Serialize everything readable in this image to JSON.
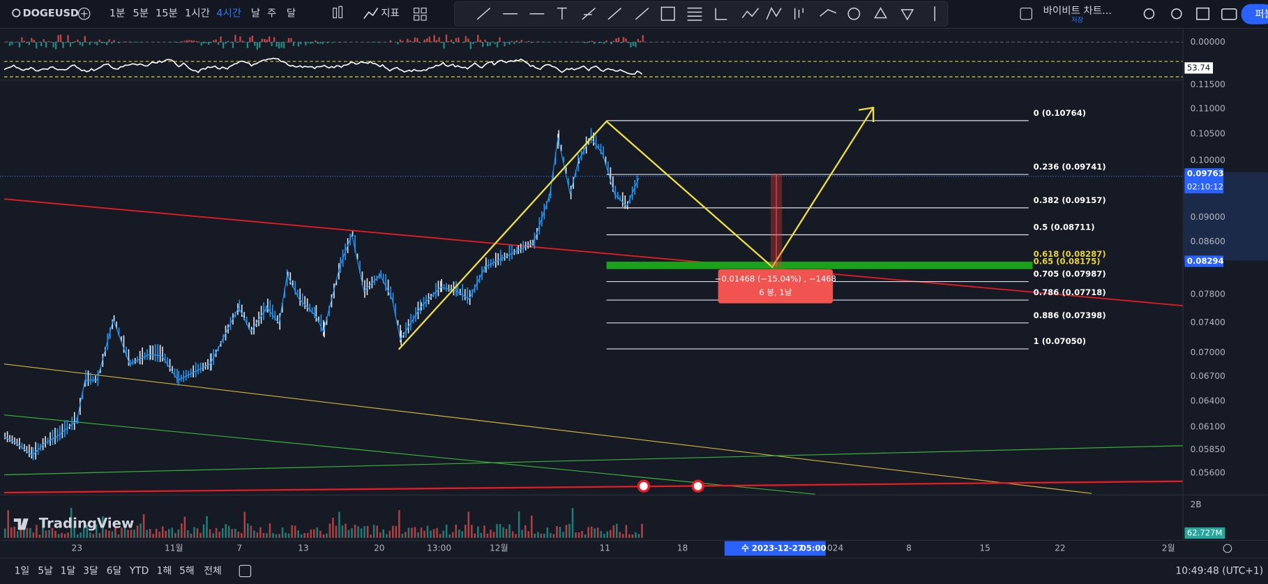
{
  "toolbar": {
    "symbol": "DOGEUSD",
    "intervals": [
      "1분",
      "5분",
      "15분",
      "1시간",
      "4시간",
      "날",
      "주",
      "달"
    ],
    "indicators": "지표",
    "layout_name": "바이비트 차트...",
    "save": "저장",
    "publish": "퍼블"
  },
  "price_axis": {
    "labels": [
      "0.11500",
      "0.11000",
      "0.10500",
      "0.10000",
      "0.09000",
      "0.08600",
      "0.07800",
      "0.07400",
      "0.07000",
      "0.06700",
      "0.06400",
      "0.06100",
      "0.05850",
      "0.05600"
    ],
    "oscillator_labels": [
      "0.00000",
      "53.74"
    ],
    "last_price": "0.09763",
    "countdown": "02:10:12",
    "marker_price": "0.08294",
    "volume_labels": [
      "2B",
      "62.727M"
    ]
  },
  "fib_levels": [
    "0 (0.10764)",
    "0.236 (0.09741)",
    "0.382 (0.09157)",
    "0.5 (0.08711)",
    "0.618 (0.08287)",
    "0.65 (0.08175)",
    "0.705 (0.07987)",
    "0.786 (0.07718)",
    "0.886 (0.07398)",
    "1 (0.07050)"
  ],
  "measure": {
    "change": "−0.01468 (−15.04%) , −1468",
    "bars": "6 봉, 1날"
  },
  "time_axis": {
    "labels": [
      "23",
      "11월",
      "7",
      "13",
      "20",
      "13:00",
      "12월",
      "11",
      "18",
      "024",
      "8",
      "15",
      "22",
      "2월"
    ],
    "cursor_date": "수 2023-12-27",
    "cursor_time": "05:00"
  },
  "range_bar": {
    "ranges": [
      "1일",
      "5날",
      "1달",
      "3달",
      "6달",
      "YTD",
      "1해",
      "5해",
      "전체"
    ],
    "clock": "10:49:48 (UTC+1)"
  },
  "brand": "TradingView"
}
